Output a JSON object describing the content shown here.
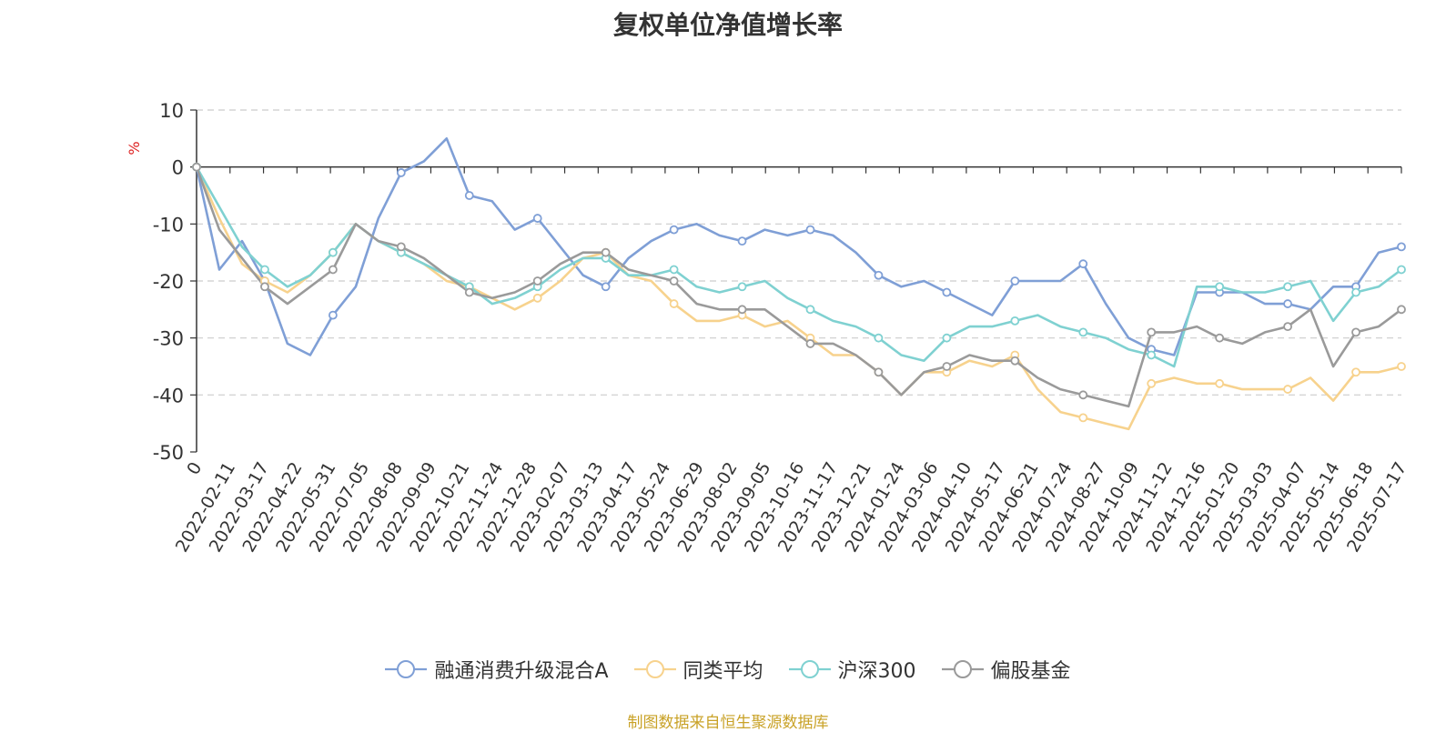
{
  "chart_data": {
    "type": "line",
    "title": "复权单位净值增长率",
    "ylabel": "%",
    "ylim": [
      -50,
      10
    ],
    "yticks": [
      10,
      0,
      -10,
      -20,
      -30,
      -40,
      -50
    ],
    "x_ticks": [
      "0",
      "2022-02-11",
      "2022-03-17",
      "2022-04-22",
      "2022-05-31",
      "2022-07-05",
      "2022-08-08",
      "2022-09-09",
      "2022-10-21",
      "2022-11-24",
      "2022-12-28",
      "2023-02-07",
      "2023-03-13",
      "2023-04-17",
      "2023-05-24",
      "2023-06-29",
      "2023-08-02",
      "2023-09-05",
      "2023-10-16",
      "2023-11-17",
      "2023-12-21",
      "2024-01-24",
      "2024-03-06",
      "2024-04-10",
      "2024-05-17",
      "2024-06-21",
      "2024-07-24",
      "2024-08-27",
      "2024-10-09",
      "2024-11-12",
      "2024-12-16",
      "2025-01-20",
      "2025-03-03",
      "2025-04-07",
      "2025-05-14",
      "2025-06-18",
      "2025-07-17"
    ],
    "grid": "horizontal dashed",
    "legend_position": "bottom-center",
    "series": [
      {
        "name": "融通消费升级混合A",
        "color": "#7f9fd6",
        "values": [
          0,
          -18,
          -13,
          -20,
          -31,
          -33,
          -26,
          -21,
          -9,
          -1,
          1,
          5,
          -5,
          -6,
          -11,
          -9,
          -14,
          -19,
          -21,
          -16,
          -13,
          -11,
          -10,
          -12,
          -13,
          -11,
          -12,
          -11,
          -12,
          -15,
          -19,
          -21,
          -20,
          -22,
          -24,
          -26,
          -20,
          -20,
          -20,
          -17,
          -24,
          -30,
          -32,
          -33,
          -22,
          -22,
          -22,
          -24,
          -24,
          -25,
          -21,
          -21,
          -15,
          -14
        ]
      },
      {
        "name": "同类平均",
        "color": "#f7d28d",
        "values": [
          0,
          -9,
          -17,
          -20,
          -22,
          -19,
          -15,
          -10,
          -13,
          -15,
          -17,
          -20,
          -21,
          -23,
          -25,
          -23,
          -20,
          -16,
          -15,
          -19,
          -20,
          -24,
          -27,
          -27,
          -26,
          -28,
          -27,
          -30,
          -33,
          -33,
          -36,
          -40,
          -36,
          -36,
          -34,
          -35,
          -33,
          -39,
          -43,
          -44,
          -45,
          -46,
          -38,
          -37,
          -38,
          -38,
          -39,
          -39,
          -39,
          -37,
          -41,
          -36,
          -36,
          -35
        ]
      },
      {
        "name": "沪深300",
        "color": "#7fd1d1",
        "values": [
          0,
          -7,
          -14,
          -18,
          -21,
          -19,
          -15,
          -10,
          -13,
          -15,
          -17,
          -19,
          -21,
          -24,
          -23,
          -21,
          -18,
          -16,
          -16,
          -19,
          -19,
          -18,
          -21,
          -22,
          -21,
          -20,
          -23,
          -25,
          -27,
          -28,
          -30,
          -33,
          -34,
          -30,
          -28,
          -28,
          -27,
          -26,
          -28,
          -29,
          -30,
          -32,
          -33,
          -35,
          -21,
          -21,
          -22,
          -22,
          -21,
          -20,
          -27,
          -22,
          -21,
          -18
        ]
      },
      {
        "name": "偏股基金",
        "color": "#9a9a9a",
        "values": [
          0,
          -11,
          -16,
          -21,
          -24,
          -21,
          -18,
          -10,
          -13,
          -14,
          -16,
          -19,
          -22,
          -23,
          -22,
          -20,
          -17,
          -15,
          -15,
          -18,
          -19,
          -20,
          -24,
          -25,
          -25,
          -25,
          -28,
          -31,
          -31,
          -33,
          -36,
          -40,
          -36,
          -35,
          -33,
          -34,
          -34,
          -37,
          -39,
          -40,
          -41,
          -42,
          -29,
          -29,
          -28,
          -30,
          -31,
          -29,
          -28,
          -25,
          -35,
          -29,
          -28,
          -25
        ]
      }
    ]
  },
  "source_note": "制图数据来自恒生聚源数据库"
}
